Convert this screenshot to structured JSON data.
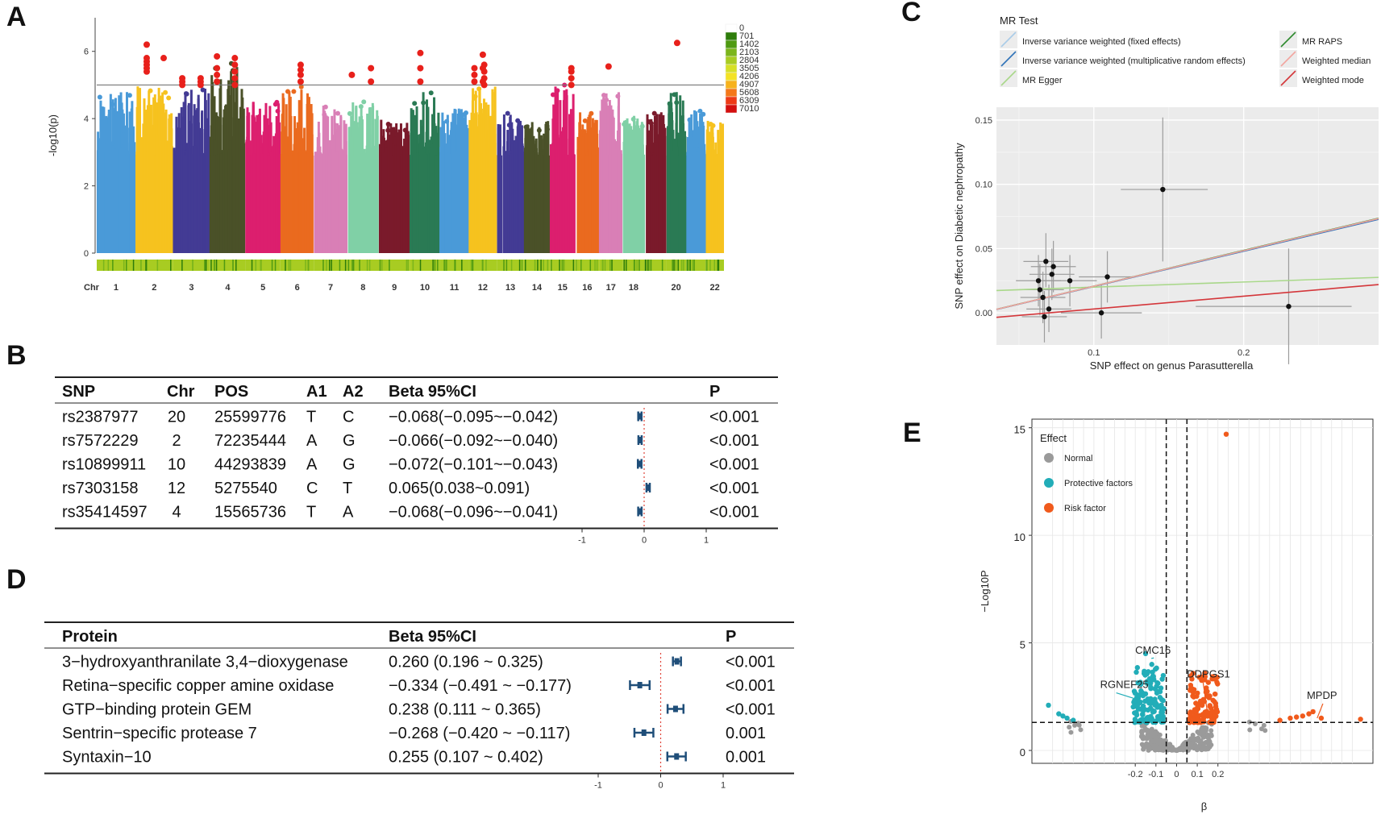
{
  "panel_labels": {
    "a": "A",
    "b": "B",
    "c": "C",
    "d": "D",
    "e": "E"
  },
  "chart_data": [
    {
      "panel": "A",
      "type": "scatter",
      "subtype": "manhattan",
      "xlabel": "Chr",
      "ylabel": "-log10(p)",
      "ylim": [
        0,
        7
      ],
      "yticks": [
        0,
        2,
        4,
        6
      ],
      "threshold": 5,
      "chromosomes": [
        "1",
        "2",
        "3",
        "4",
        "5",
        "6",
        "7",
        "8",
        "9",
        "10",
        "11",
        "12",
        "13",
        "14",
        "15",
        "16",
        "17",
        "18",
        "19",
        "20",
        "21",
        "22"
      ],
      "x_tick_labels": [
        "1",
        "2",
        "3",
        "4",
        "5",
        "6",
        "7",
        "8",
        "9",
        "10",
        "11",
        "12",
        "13",
        "14",
        "15",
        "16",
        "17",
        "18",
        "20",
        "22"
      ],
      "chr_colors": [
        "#4a9ad8",
        "#f6c21f",
        "#433b94",
        "#4a5128",
        "#dc1f6e",
        "#ea6a1f",
        "#d97fb6",
        "#80d0a6",
        "#7a1a2b",
        "#2a7a54",
        "#4a9ad8",
        "#f6c21f",
        "#433b94",
        "#4a5128",
        "#dc1f6e",
        "#ea6a1f",
        "#d97fb6",
        "#80d0a6",
        "#7a1a2b",
        "#2a7a54",
        "#4a9ad8",
        "#f6c21f"
      ],
      "chr_peak": [
        4.8,
        5.0,
        4.9,
        5.8,
        4.6,
        5.0,
        4.4,
        4.5,
        4.0,
        4.8,
        4.3,
        5.0,
        4.2,
        4.0,
        5.0,
        4.2,
        4.8,
        4.1,
        4.2,
        4.8,
        4.3,
        4.0
      ],
      "significant_hits": [
        {
          "chr": "2",
          "y": [
            5.4,
            5.5,
            5.6,
            5.7,
            5.8,
            6.2
          ]
        },
        {
          "chr": "2",
          "y": [
            5.8
          ]
        },
        {
          "chr": "3",
          "y": [
            5.0,
            5.1,
            5.2
          ]
        },
        {
          "chr": "3",
          "y": [
            5.0,
            5.1,
            5.2
          ]
        },
        {
          "chr": "4",
          "y": [
            5.1,
            5.3,
            5.5,
            5.85
          ]
        },
        {
          "chr": "4",
          "y": [
            5.0,
            5.2,
            5.4,
            5.6,
            5.8
          ]
        },
        {
          "chr": "6",
          "y": [
            5.1,
            5.3,
            5.45,
            5.6
          ]
        },
        {
          "chr": "8",
          "y": [
            5.3
          ]
        },
        {
          "chr": "8",
          "y": [
            5.1,
            5.5
          ]
        },
        {
          "chr": "10",
          "y": [
            5.1,
            5.5,
            5.95
          ]
        },
        {
          "chr": "12",
          "y": [
            5.1,
            5.5,
            5.9
          ]
        },
        {
          "chr": "12",
          "y": [
            5.1,
            5.3,
            5.5
          ]
        },
        {
          "chr": "12",
          "y": [
            5.0,
            5.2,
            5.4,
            5.6
          ]
        },
        {
          "chr": "15",
          "y": [
            5.0,
            5.2,
            5.4,
            5.5
          ]
        },
        {
          "chr": "17",
          "y": [
            5.55
          ]
        },
        {
          "chr": "20",
          "y": [
            6.25
          ]
        }
      ],
      "density_legend": [
        "0",
        "701",
        "1402",
        "2103",
        "2804",
        "3505",
        "4206",
        "4907",
        "5608",
        "6309",
        "7010"
      ],
      "density_colors": [
        "#ffffff",
        "#2e7d0b",
        "#4f9a12",
        "#7bb51c",
        "#a8cc22",
        "#d6e026",
        "#f4e224",
        "#f7b21c",
        "#f4781a",
        "#ee3a17",
        "#d40f0f"
      ]
    },
    {
      "panel": "B",
      "type": "table",
      "subtype": "forest",
      "columns": [
        "SNP",
        "Chr",
        "POS",
        "A1",
        "A2",
        "Beta 95%CI",
        "P"
      ],
      "rows": [
        {
          "SNP": "rs2387977",
          "Chr": "20",
          "POS": "25599776",
          "A1": "T",
          "A2": "C",
          "ci": "−0.068(−0.095~−0.042)",
          "P": "<0.001",
          "beta": -0.068,
          "lo": -0.095,
          "hi": -0.042
        },
        {
          "SNP": "rs7572229",
          "Chr": "2",
          "POS": "72235444",
          "A1": "A",
          "A2": "G",
          "ci": "−0.066(−0.092~−0.040)",
          "P": "<0.001",
          "beta": -0.066,
          "lo": -0.092,
          "hi": -0.04
        },
        {
          "SNP": "rs10899911",
          "Chr": "10",
          "POS": "44293839",
          "A1": "A",
          "A2": "G",
          "ci": "−0.072(−0.101~−0.043)",
          "P": "<0.001",
          "beta": -0.072,
          "lo": -0.101,
          "hi": -0.043
        },
        {
          "SNP": "rs7303158",
          "Chr": "12",
          "POS": "5275540",
          "A1": "C",
          "A2": "T",
          "ci": "0.065(0.038~0.091)",
          "P": "<0.001",
          "beta": 0.065,
          "lo": 0.038,
          "hi": 0.091
        },
        {
          "SNP": "rs35414597",
          "Chr": "4",
          "POS": "15565736",
          "A1": "T",
          "A2": "A",
          "ci": "−0.068(−0.096~−0.041)",
          "P": "<0.001",
          "beta": -0.068,
          "lo": -0.096,
          "hi": -0.041
        }
      ],
      "xticks": [
        -1,
        0,
        1
      ],
      "xlim": [
        -1,
        1
      ]
    },
    {
      "panel": "C",
      "type": "scatter",
      "title": "MR Test",
      "xlabel": "SNP effect on genus Parasutterella",
      "ylabel": "SNP effect on Diabetic nephropathy",
      "xlim": [
        0.035,
        0.29
      ],
      "ylim": [
        -0.025,
        0.16
      ],
      "xticks": [
        0.1,
        0.2
      ],
      "yticks": [
        0.0,
        0.05,
        0.1,
        0.15
      ],
      "ytick_labels": [
        "0.00",
        "0.05",
        "0.10",
        "0.15"
      ],
      "points": [
        {
          "x": 0.063,
          "y": 0.025,
          "xlo": 0.048,
          "xhi": 0.078,
          "ylo": 0.005,
          "yhi": 0.045
        },
        {
          "x": 0.064,
          "y": 0.018,
          "xlo": 0.05,
          "xhi": 0.08,
          "ylo": -0.002,
          "yhi": 0.038
        },
        {
          "x": 0.066,
          "y": 0.012,
          "xlo": 0.051,
          "xhi": 0.081,
          "ylo": -0.008,
          "yhi": 0.032
        },
        {
          "x": 0.067,
          "y": -0.003,
          "xlo": 0.052,
          "xhi": 0.082,
          "ylo": -0.023,
          "yhi": 0.017
        },
        {
          "x": 0.068,
          "y": 0.04,
          "xlo": 0.053,
          "xhi": 0.083,
          "ylo": 0.02,
          "yhi": 0.062
        },
        {
          "x": 0.07,
          "y": 0.003,
          "xlo": 0.055,
          "xhi": 0.085,
          "ylo": -0.015,
          "yhi": 0.022
        },
        {
          "x": 0.072,
          "y": 0.03,
          "xlo": 0.057,
          "xhi": 0.087,
          "ylo": 0.01,
          "yhi": 0.05
        },
        {
          "x": 0.073,
          "y": 0.036,
          "xlo": 0.058,
          "xhi": 0.088,
          "ylo": 0.016,
          "yhi": 0.056
        },
        {
          "x": 0.084,
          "y": 0.025,
          "xlo": 0.066,
          "xhi": 0.102,
          "ylo": 0.005,
          "yhi": 0.045
        },
        {
          "x": 0.105,
          "y": 0.0,
          "xlo": 0.078,
          "xhi": 0.132,
          "ylo": -0.02,
          "yhi": 0.022
        },
        {
          "x": 0.109,
          "y": 0.028,
          "xlo": 0.09,
          "xhi": 0.128,
          "ylo": 0.008,
          "yhi": 0.048
        },
        {
          "x": 0.146,
          "y": 0.096,
          "xlo": 0.118,
          "xhi": 0.176,
          "ylo": 0.04,
          "yhi": 0.152
        },
        {
          "x": 0.23,
          "y": 0.005,
          "xlo": 0.168,
          "xhi": 0.272,
          "ylo": -0.04,
          "yhi": 0.05
        }
      ],
      "lines": [
        {
          "name": "Inverse variance weighted (fixed effects)",
          "color": "#a9cce8",
          "slope": 0.275,
          "intercept": -0.007
        },
        {
          "name": "Inverse variance weighted (multiplicative random effects)",
          "color": "#2f73b8",
          "slope": 0.275,
          "intercept": -0.007
        },
        {
          "name": "MR Egger",
          "color": "#a9d88a",
          "slope": 0.04,
          "intercept": 0.016
        },
        {
          "name": "MR RAPS",
          "color": "#2e8a2e",
          "slope": 0.278,
          "intercept": -0.007
        },
        {
          "name": "Weighted median",
          "color": "#f2a5a0",
          "slope": 0.277,
          "intercept": -0.007
        },
        {
          "name": "Weighted mode",
          "color": "#d4363a",
          "slope": 0.1,
          "intercept": -0.007
        }
      ]
    },
    {
      "panel": "D",
      "type": "table",
      "subtype": "forest",
      "columns": [
        "Protein",
        "Beta 95%CI",
        "P"
      ],
      "rows": [
        {
          "name": "3−hydroxyanthranilate 3,4−dioxygenase",
          "ci": "0.260 (0.196 ~ 0.325)",
          "P": "<0.001",
          "beta": 0.26,
          "lo": 0.196,
          "hi": 0.325
        },
        {
          "name": "Retina−specific copper amine oxidase",
          "ci": "−0.334 (−0.491 ~ −0.177)",
          "P": "<0.001",
          "beta": -0.334,
          "lo": -0.491,
          "hi": -0.177
        },
        {
          "name": "GTP−binding protein GEM",
          "ci": "0.238 (0.111 ~ 0.365)",
          "P": "<0.001",
          "beta": 0.238,
          "lo": 0.111,
          "hi": 0.365
        },
        {
          "name": "Sentrin−specific protease 7",
          "ci": "−0.268 (−0.420 ~ −0.117)",
          "P": "0.001",
          "beta": -0.268,
          "lo": -0.42,
          "hi": -0.117
        },
        {
          "name": "Syntaxin−10",
          "ci": "0.255 (0.107 ~ 0.402)",
          "P": "0.001",
          "beta": 0.255,
          "lo": 0.107,
          "hi": 0.402
        }
      ],
      "xticks": [
        -1,
        0,
        1
      ],
      "xlim": [
        -1,
        1
      ]
    },
    {
      "panel": "E",
      "type": "scatter",
      "subtype": "volcano",
      "legend_title": "Effect",
      "legend": [
        {
          "name": "Normal",
          "color": "#9a9a9a"
        },
        {
          "name": "Protective factors",
          "color": "#22adb8"
        },
        {
          "name": "Risk factor",
          "color": "#f05a1c"
        }
      ],
      "xlabel": "β",
      "ylabel": "−Log10P",
      "xlim": [
        -0.7,
        0.95
      ],
      "ylim": [
        -0.6,
        15.4
      ],
      "yticks": [
        0,
        5,
        10,
        15
      ],
      "xticks": [
        -0.2,
        -0.1,
        0,
        0.1,
        0.2
      ],
      "xtick_labels": [
        "-0.2",
        "-0.1",
        "0",
        "0.1",
        "0.2"
      ],
      "threshold_y": 1.3,
      "threshold_x": [
        -0.05,
        0.05
      ],
      "labels": [
        {
          "text": "CMC16",
          "x": -0.11,
          "y": 4.3,
          "tx": -0.2,
          "ty": 4.5,
          "color": "#22adb8"
        },
        {
          "text": "RGNEF25",
          "x": -0.2,
          "y": 2.4,
          "tx": -0.37,
          "ty": 2.9,
          "color": "#22adb8"
        },
        {
          "text": "DDPGS1",
          "x": 0.15,
          "y": 1.7,
          "tx": 0.05,
          "ty": 3.4,
          "color": "#f05a1c"
        },
        {
          "text": "MPDP",
          "x": 0.68,
          "y": 1.5,
          "tx": 0.63,
          "ty": 2.4,
          "color": "#f05a1c"
        }
      ],
      "top_point": {
        "x": 0.24,
        "y": 14.7
      }
    }
  ]
}
